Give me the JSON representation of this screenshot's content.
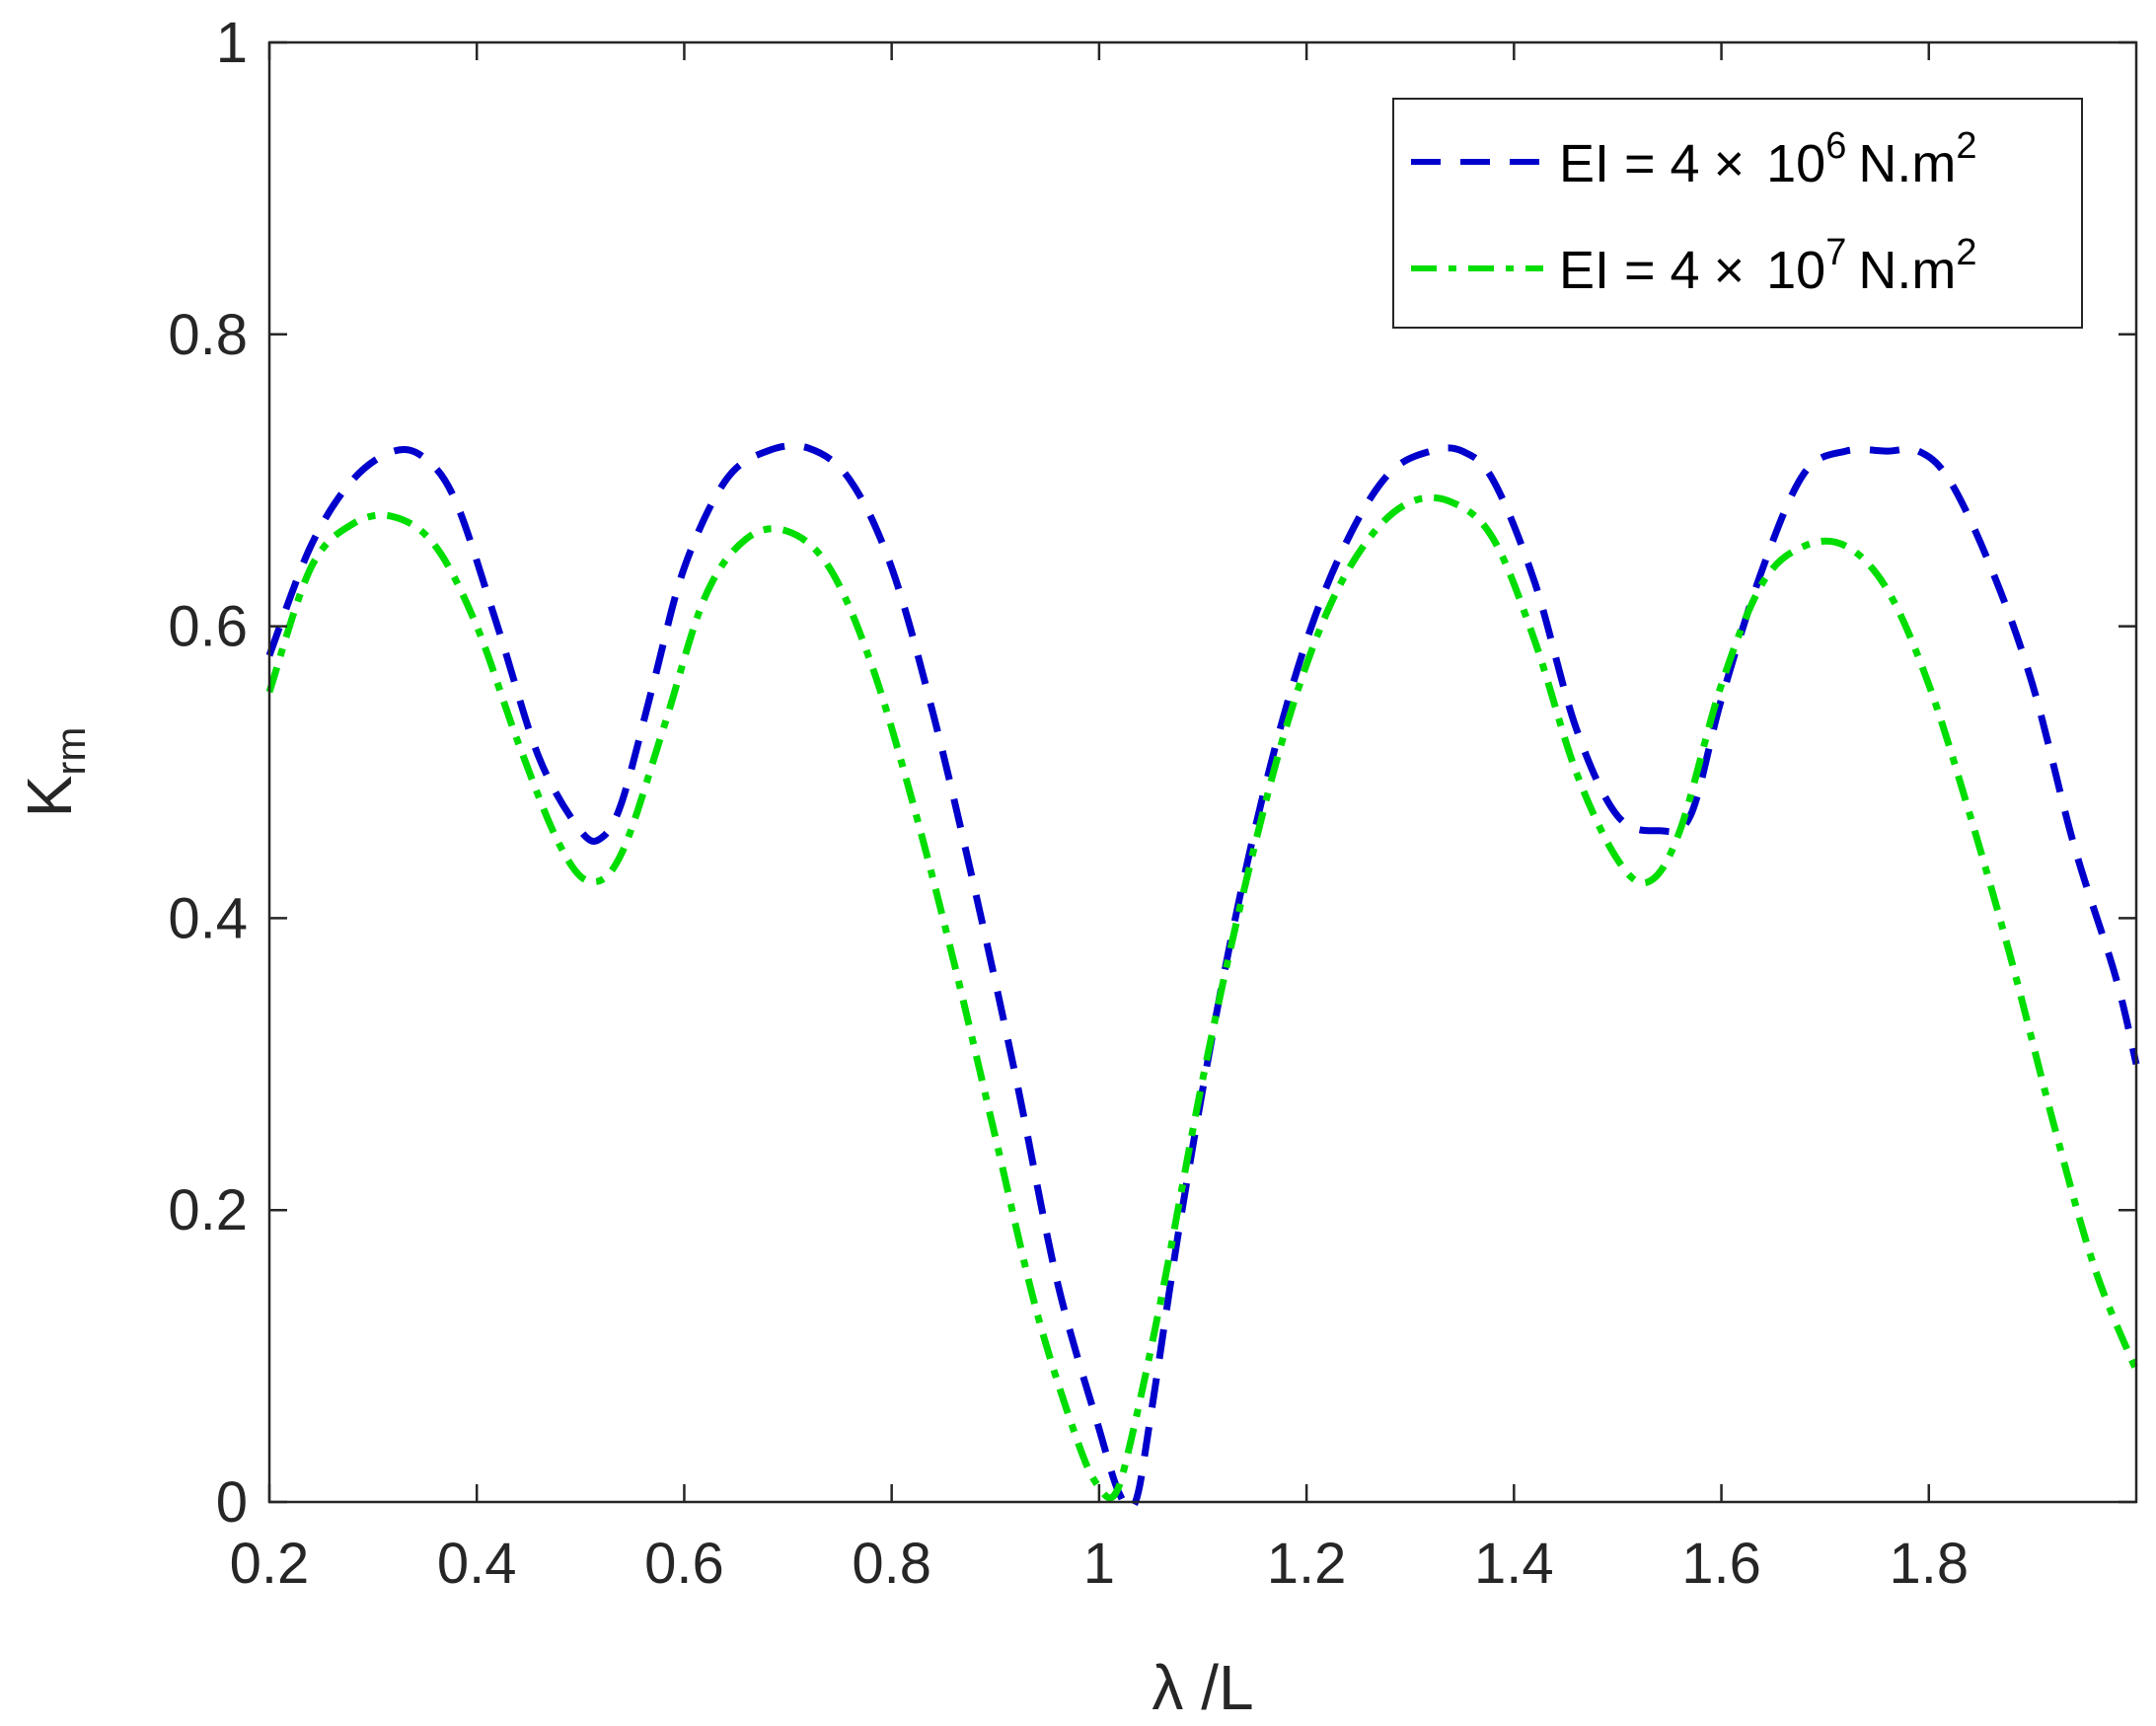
{
  "chart_data": {
    "type": "line",
    "title": "",
    "xlabel": "λ /L",
    "ylabel": "K",
    "ylabel_subscript": "rm",
    "xlim": [
      0.2,
      2.0
    ],
    "ylim": [
      0,
      1
    ],
    "x_ticks": [
      0.2,
      0.4,
      0.6,
      0.8,
      1.0,
      1.2,
      1.4,
      1.6,
      1.8
    ],
    "x_tick_labels": [
      "0.2",
      "0.4",
      "0.6",
      "0.8",
      "1",
      "1.2",
      "1.4",
      "1.6",
      "1.8"
    ],
    "y_ticks": [
      0,
      0.2,
      0.4,
      0.6,
      0.8,
      1.0
    ],
    "y_tick_labels": [
      "0",
      "0.2",
      "0.4",
      "0.6",
      "0.8",
      "1"
    ],
    "grid": false,
    "legend_position": "top-right",
    "series": [
      {
        "name": "EI = 4 × 10^6 N.m^2",
        "legend_parts": {
          "main": "EI = 4",
          "times": "×",
          "mantissa": "10",
          "exponent": "6",
          "unit": "N.m",
          "unit_exp": "2"
        },
        "color": "#0000cc",
        "style": "dashed",
        "x": [
          0.2,
          0.24,
          0.28,
          0.32,
          0.35,
          0.38,
          0.42,
          0.46,
          0.5,
          0.52,
          0.54,
          0.57,
          0.6,
          0.64,
          0.68,
          0.72,
          0.76,
          0.8,
          0.84,
          0.88,
          0.92,
          0.96,
          1.0,
          1.02,
          1.035,
          1.05,
          1.08,
          1.12,
          1.16,
          1.2,
          1.24,
          1.28,
          1.32,
          1.35,
          1.38,
          1.42,
          1.46,
          1.5,
          1.54,
          1.57,
          1.6,
          1.64,
          1.68,
          1.72,
          1.76,
          1.79,
          1.82,
          1.86,
          1.9,
          1.94,
          1.98,
          2.0
        ],
        "y": [
          0.58,
          0.655,
          0.7,
          0.72,
          0.715,
          0.685,
          0.6,
          0.51,
          0.46,
          0.455,
          0.48,
          0.56,
          0.64,
          0.7,
          0.72,
          0.722,
          0.7,
          0.64,
          0.54,
          0.42,
          0.29,
          0.15,
          0.05,
          0.005,
          0.0,
          0.06,
          0.2,
          0.36,
          0.49,
          0.59,
          0.66,
          0.705,
          0.72,
          0.72,
          0.7,
          0.63,
          0.53,
          0.47,
          0.46,
          0.47,
          0.55,
          0.64,
          0.705,
          0.72,
          0.72,
          0.72,
          0.7,
          0.64,
          0.56,
          0.45,
          0.36,
          0.3
        ]
      },
      {
        "name": "EI = 4 × 10^7 N.m^2",
        "legend_parts": {
          "main": "EI = 4",
          "times": "×",
          "mantissa": "10",
          "exponent": "7",
          "unit": "N.m",
          "unit_exp": "2"
        },
        "color": "#00dd00",
        "style": "dashdot",
        "x": [
          0.2,
          0.24,
          0.28,
          0.32,
          0.36,
          0.4,
          0.44,
          0.48,
          0.51,
          0.54,
          0.58,
          0.62,
          0.66,
          0.7,
          0.74,
          0.78,
          0.82,
          0.86,
          0.9,
          0.94,
          0.98,
          1.0,
          1.015,
          1.03,
          1.06,
          1.1,
          1.14,
          1.18,
          1.22,
          1.26,
          1.3,
          1.34,
          1.38,
          1.42,
          1.46,
          1.5,
          1.53,
          1.56,
          1.6,
          1.64,
          1.68,
          1.72,
          1.76,
          1.8,
          1.84,
          1.88,
          1.92,
          1.96,
          2.0
        ],
        "y": [
          0.555,
          0.64,
          0.67,
          0.675,
          0.655,
          0.6,
          0.52,
          0.45,
          0.425,
          0.445,
          0.53,
          0.62,
          0.66,
          0.665,
          0.64,
          0.575,
          0.48,
          0.37,
          0.25,
          0.13,
          0.04,
          0.01,
          0.005,
          0.04,
          0.14,
          0.29,
          0.42,
          0.53,
          0.61,
          0.66,
          0.685,
          0.685,
          0.66,
          0.59,
          0.5,
          0.44,
          0.425,
          0.46,
          0.56,
          0.63,
          0.655,
          0.655,
          0.625,
          0.56,
          0.47,
          0.37,
          0.26,
          0.16,
          0.09
        ]
      }
    ]
  }
}
